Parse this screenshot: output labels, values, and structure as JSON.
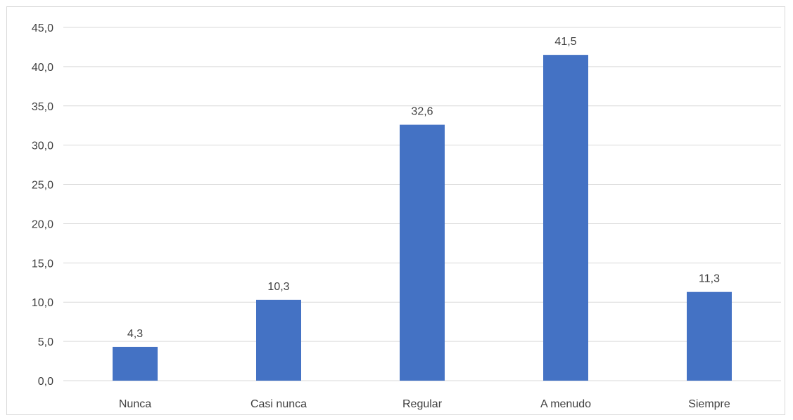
{
  "chart_data": {
    "type": "bar",
    "categories": [
      "Nunca",
      "Casi nunca",
      "Regular",
      "A menudo",
      "Siempre"
    ],
    "values": [
      4.3,
      10.3,
      32.6,
      41.5,
      11.3
    ],
    "value_labels": [
      "4,3",
      "10,3",
      "32,6",
      "41,5",
      "11,3"
    ],
    "yticks": [
      "0,0",
      "5,0",
      "10,0",
      "15,0",
      "20,0",
      "25,0",
      "30,0",
      "35,0",
      "40,0",
      "45,0"
    ],
    "ylim": [
      0,
      45
    ],
    "ytick_step": 5,
    "title": "",
    "xlabel": "",
    "ylabel": "",
    "grid": true,
    "legend": "none",
    "colors": {
      "bar": "#4472c4",
      "grid": "#d9d9d9",
      "text": "#404040"
    }
  }
}
